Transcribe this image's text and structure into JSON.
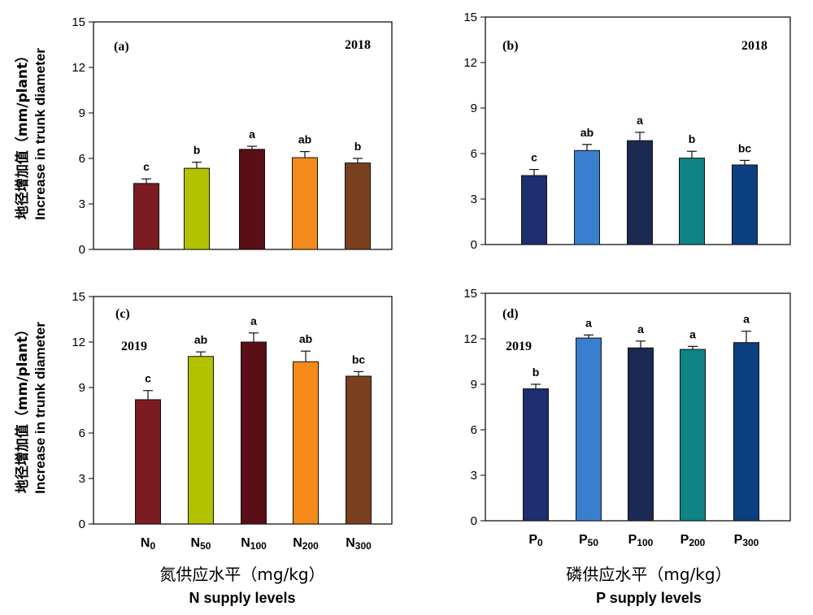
{
  "y_label_cn": "地径增加值（mm/plant）",
  "y_label_en": "Increase in trunk diameter",
  "x_label_n_cn": "氮供应水平（mg/kg）",
  "x_label_n_en": "N supply levels",
  "x_label_p_cn": "磷供应水平（mg/kg）",
  "x_label_p_en": "P supply levels",
  "chart_data": [
    {
      "type": "bar",
      "panel": "(a)",
      "year": "2018",
      "categories": [
        {
          "main": "N",
          "sub": "0"
        },
        {
          "main": "N",
          "sub": "50"
        },
        {
          "main": "N",
          "sub": "100"
        },
        {
          "main": "N",
          "sub": "200"
        },
        {
          "main": "N",
          "sub": "300"
        }
      ],
      "show_categories": false,
      "values": [
        4.35,
        5.35,
        6.6,
        6.05,
        5.7
      ],
      "errors": [
        0.3,
        0.4,
        0.2,
        0.4,
        0.3
      ],
      "letters": [
        "c",
        "b",
        "a",
        "ab",
        "b"
      ],
      "colors": [
        "#7b1c22",
        "#b3c200",
        "#5a0e16",
        "#f48a19",
        "#7a4020"
      ],
      "ylim": [
        0,
        15
      ],
      "yticks": [
        0,
        3,
        6,
        9,
        12,
        15
      ],
      "grid": false
    },
    {
      "type": "bar",
      "panel": "(b)",
      "year": "2018",
      "categories": [
        {
          "main": "P",
          "sub": "0"
        },
        {
          "main": "P",
          "sub": "50"
        },
        {
          "main": "P",
          "sub": "100"
        },
        {
          "main": "P",
          "sub": "200"
        },
        {
          "main": "P",
          "sub": "300"
        }
      ],
      "show_categories": false,
      "values": [
        4.55,
        6.2,
        6.85,
        5.7,
        5.25
      ],
      "errors": [
        0.4,
        0.4,
        0.55,
        0.45,
        0.3
      ],
      "letters": [
        "c",
        "ab",
        "a",
        "b",
        "bc"
      ],
      "colors": [
        "#1e2e6e",
        "#3a7fcf",
        "#1a2a52",
        "#0e8484",
        "#0b3f80"
      ],
      "ylim": [
        0,
        15
      ],
      "yticks": [
        0,
        3,
        6,
        9,
        12,
        15
      ],
      "grid": false
    },
    {
      "type": "bar",
      "panel": "(c)",
      "year": "2019",
      "categories": [
        {
          "main": "N",
          "sub": "0"
        },
        {
          "main": "N",
          "sub": "50"
        },
        {
          "main": "N",
          "sub": "100"
        },
        {
          "main": "N",
          "sub": "200"
        },
        {
          "main": "N",
          "sub": "300"
        }
      ],
      "show_categories": true,
      "values": [
        8.2,
        11.05,
        12.0,
        10.7,
        9.75
      ],
      "errors": [
        0.6,
        0.3,
        0.6,
        0.7,
        0.3
      ],
      "letters": [
        "c",
        "ab",
        "a",
        "ab",
        "bc"
      ],
      "colors": [
        "#7b1c22",
        "#b3c200",
        "#5a0e16",
        "#f48a19",
        "#7a4020"
      ],
      "ylim": [
        0,
        15
      ],
      "yticks": [
        0,
        3,
        6,
        9,
        12,
        15
      ],
      "grid": false
    },
    {
      "type": "bar",
      "panel": "(d)",
      "year": "2019",
      "categories": [
        {
          "main": "P",
          "sub": "0"
        },
        {
          "main": "P",
          "sub": "50"
        },
        {
          "main": "P",
          "sub": "100"
        },
        {
          "main": "P",
          "sub": "200"
        },
        {
          "main": "P",
          "sub": "300"
        }
      ],
      "show_categories": true,
      "values": [
        8.7,
        12.05,
        11.4,
        11.3,
        11.75
      ],
      "errors": [
        0.3,
        0.2,
        0.45,
        0.2,
        0.75
      ],
      "letters": [
        "b",
        "a",
        "a",
        "a",
        "a"
      ],
      "colors": [
        "#1e2e6e",
        "#3a7fcf",
        "#1a2a52",
        "#0e8484",
        "#0b3f80"
      ],
      "ylim": [
        0,
        15
      ],
      "yticks": [
        0,
        3,
        6,
        9,
        12,
        15
      ],
      "grid": false
    }
  ]
}
